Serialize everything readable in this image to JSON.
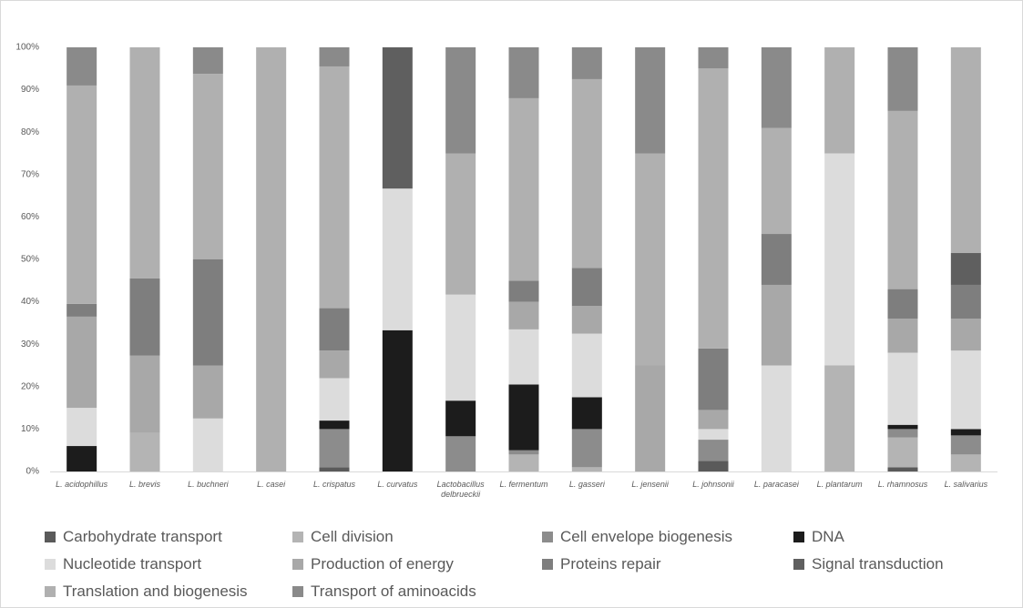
{
  "chart_data": {
    "type": "stacked_bar",
    "categories": [
      "L. acidophillus",
      "L. brevis",
      "L. buchneri",
      "L. casei",
      "L. crispatus",
      "L. curvatus",
      "Lactobacillus delbrueckii",
      "L. fermentum",
      "L. gasseri",
      "L. jensenii",
      "L. johnsonii",
      "L. paracasei",
      "L. plantarum",
      "L. rhamnosus",
      "L. salivarius"
    ],
    "series": [
      {
        "name": "Carbohydrate transport",
        "color": "#5a5a5a",
        "values": [
          0,
          0,
          0,
          0,
          1,
          0,
          0,
          0,
          0,
          0,
          2.5,
          0,
          0,
          1,
          0
        ]
      },
      {
        "name": "Cell division",
        "color": "#b4b4b4",
        "values": [
          0,
          9.1,
          0,
          0,
          0,
          0,
          0,
          4,
          1,
          0,
          0,
          0,
          25,
          7,
          4
        ]
      },
      {
        "name": "Cell envelope biogenesis",
        "color": "#8c8c8c",
        "values": [
          0,
          0,
          0,
          0,
          9,
          0,
          8.3,
          1,
          9,
          0,
          5,
          0,
          0,
          2,
          4.5
        ]
      },
      {
        "name": "DNA",
        "color": "#1c1c1c",
        "values": [
          6,
          0,
          0,
          0,
          2,
          33.3,
          8.4,
          15.5,
          7.5,
          0,
          0,
          0,
          0,
          1,
          1.5
        ]
      },
      {
        "name": "Nucleotide transport",
        "color": "#dcdcdc",
        "values": [
          9,
          0,
          12.5,
          0,
          10,
          33.4,
          25,
          13,
          15,
          0,
          2.5,
          25,
          50,
          17,
          18.5
        ]
      },
      {
        "name": "Production of energy",
        "color": "#a8a8a8",
        "values": [
          21.5,
          18.2,
          12.5,
          0,
          6.5,
          0,
          0,
          6.5,
          6.5,
          25,
          4.5,
          19,
          0,
          8,
          7.5
        ]
      },
      {
        "name": "Proteins repair",
        "color": "#7e7e7e",
        "values": [
          3,
          18.2,
          25,
          0,
          10,
          0,
          0,
          5,
          9,
          0,
          14.5,
          12,
          0,
          7,
          8
        ]
      },
      {
        "name": "Signal transduction",
        "color": "#5f5f5f",
        "values": [
          0,
          0,
          0,
          0,
          0,
          33.3,
          0,
          0,
          0,
          0,
          0,
          0,
          0,
          0,
          7.5
        ]
      },
      {
        "name": "Translation and biogenesis",
        "color": "#b0b0b0",
        "values": [
          51.5,
          54.5,
          43.75,
          100,
          57,
          0,
          33.3,
          43,
          44.5,
          50,
          66,
          25,
          25,
          42,
          48.5
        ]
      },
      {
        "name": "Transport of aminoacids",
        "color": "#8a8a8a",
        "values": [
          9,
          0,
          6.25,
          0,
          4.5,
          0,
          25,
          12,
          7.5,
          25,
          5,
          19,
          0,
          15,
          0
        ]
      }
    ],
    "ylim": [
      0,
      100
    ],
    "yticks": [
      {
        "value": 0,
        "label": "0%"
      },
      {
        "value": 10,
        "label": "10%"
      },
      {
        "value": 20,
        "label": "20%"
      },
      {
        "value": 30,
        "label": "30%"
      },
      {
        "value": 40,
        "label": "40%"
      },
      {
        "value": 50,
        "label": "50%"
      },
      {
        "value": 60,
        "label": "60%"
      },
      {
        "value": 70,
        "label": "70%"
      },
      {
        "value": 80,
        "label": "80%"
      },
      {
        "value": 90,
        "label": "90%"
      },
      {
        "value": 100,
        "label": "100%"
      }
    ],
    "grid": false,
    "legend": "bottom"
  }
}
